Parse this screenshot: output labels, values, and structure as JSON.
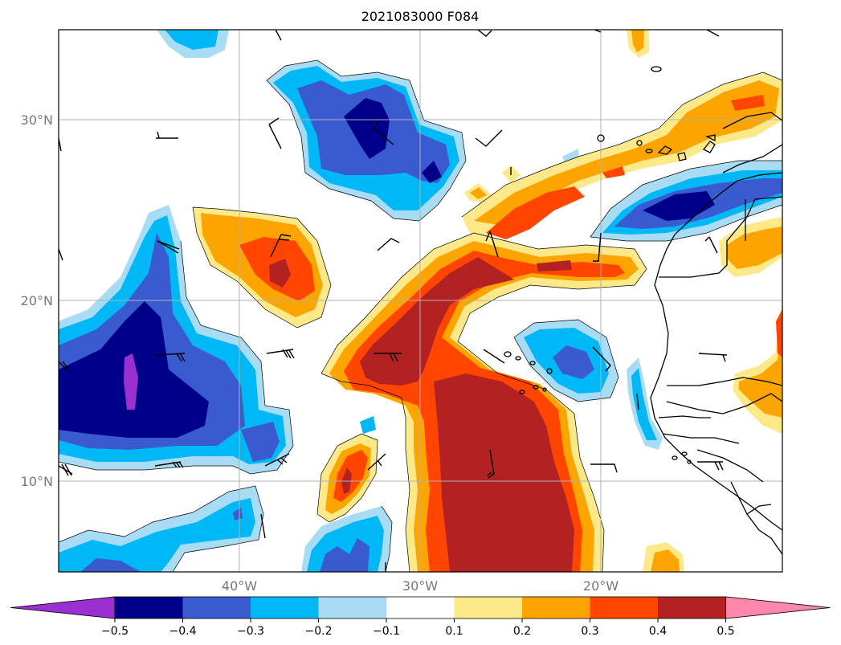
{
  "title": "2021083000 F084",
  "map": {
    "lat_labels": [
      "30°N",
      "20°N",
      "10°N"
    ],
    "lon_labels": [
      "40°W",
      "30°W",
      "20°W"
    ],
    "extent": {
      "lon_min": -50,
      "lon_max": -10,
      "lat_min": 5,
      "lat_max": 35
    }
  },
  "colorbar": {
    "ticks": [
      "−0.5",
      "−0.4",
      "−0.3",
      "−0.2",
      "−0.1",
      "0.1",
      "0.2",
      "0.3",
      "0.4",
      "0.5"
    ],
    "levels": [
      {
        "range": "< -0.5",
        "color": "#9b30d0"
      },
      {
        "range": "-0.5 to -0.4",
        "color": "#00008b"
      },
      {
        "range": "-0.4 to -0.3",
        "color": "#3a5bd0"
      },
      {
        "range": "-0.3 to -0.2",
        "color": "#00b8f5"
      },
      {
        "range": "-0.2 to -0.1",
        "color": "#a8dcf5"
      },
      {
        "range": "-0.1 to 0.1",
        "color": "#ffffff"
      },
      {
        "range": "0.1 to 0.2",
        "color": "#fde98a"
      },
      {
        "range": "0.2 to 0.3",
        "color": "#fca500"
      },
      {
        "range": "0.3 to 0.4",
        "color": "#ff4500"
      },
      {
        "range": "0.4 to 0.5",
        "color": "#b22222"
      },
      {
        "range": "> 0.5",
        "color": "#ff88aa"
      }
    ]
  }
}
